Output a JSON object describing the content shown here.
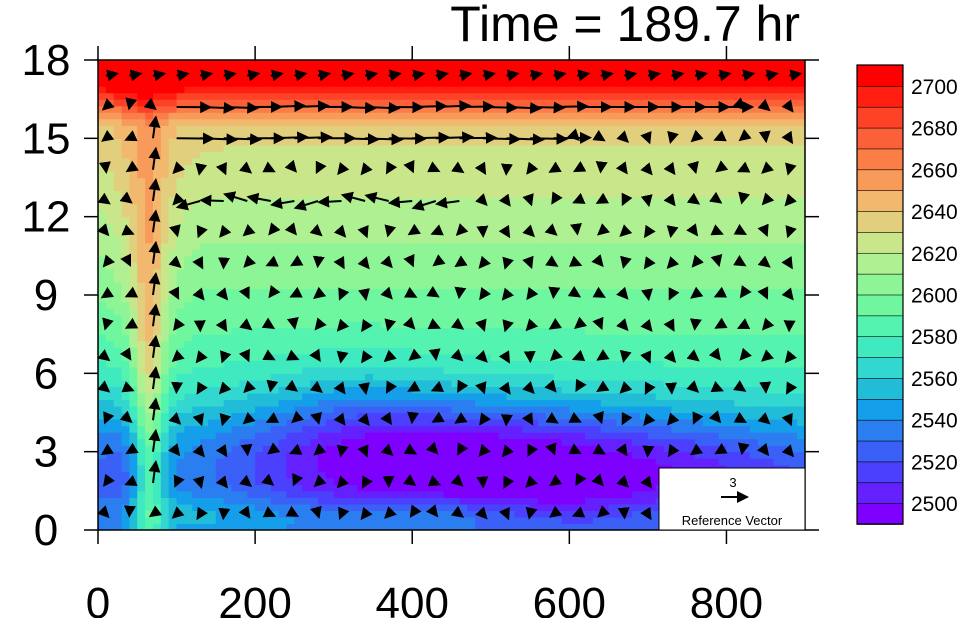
{
  "chart_data": {
    "type": "heatmap",
    "title": "Time = 189.7 hr",
    "xlabel": "",
    "ylabel": "",
    "xlim": [
      0,
      900
    ],
    "ylim": [
      0,
      18
    ],
    "x_ticks": [
      0,
      200,
      400,
      600,
      800
    ],
    "y_ticks": [
      0,
      3,
      6,
      9,
      12,
      15,
      18
    ],
    "colorbar": {
      "levels": [
        2490,
        2500,
        2510,
        2520,
        2530,
        2540,
        2550,
        2560,
        2570,
        2580,
        2590,
        2600,
        2610,
        2620,
        2630,
        2640,
        2650,
        2660,
        2670,
        2680,
        2690,
        2700,
        2710
      ],
      "labels": [
        2500,
        2520,
        2540,
        2560,
        2580,
        2600,
        2620,
        2640,
        2660,
        2680,
        2700
      ],
      "colors": [
        "#7e00ff",
        "#6420ff",
        "#4c40ff",
        "#3a60f8",
        "#2a7ef0",
        "#159eea",
        "#20bcd8",
        "#32d8d0",
        "#40eac0",
        "#55f3b0",
        "#6ff7a0",
        "#8df596",
        "#aef092",
        "#cae68a",
        "#e2cf7e",
        "#f2b86e",
        "#f89a5a",
        "#fb7d48",
        "#fc6038",
        "#fd4228",
        "#ff1e10",
        "#ff0000"
      ]
    },
    "reference_vector": {
      "value": "3",
      "label": "Reference Vector"
    }
  }
}
